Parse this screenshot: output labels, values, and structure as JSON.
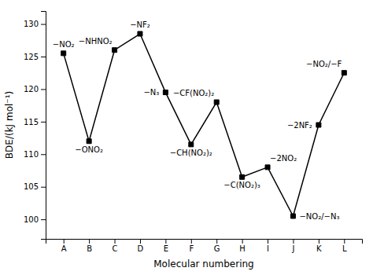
{
  "chart_data": {
    "type": "line",
    "categories": [
      "A",
      "B",
      "C",
      "D",
      "E",
      "F",
      "G",
      "H",
      "I",
      "J",
      "K",
      "L"
    ],
    "values": [
      125.5,
      112.0,
      126.0,
      128.5,
      119.5,
      111.5,
      118.0,
      106.5,
      108.0,
      100.5,
      114.5,
      122.5
    ],
    "color": "black",
    "marker": "square",
    "line_style": "solid",
    "grid": false,
    "xlabel": "Molecular numbering",
    "ylabel": "BDE/(kJ mol⁻¹)",
    "ylim": [
      97,
      132
    ],
    "yticks": [
      100,
      105,
      110,
      115,
      120,
      125,
      130
    ],
    "annotations": [
      {
        "text": "−NO₂",
        "x": "A",
        "y": 125.5
      },
      {
        "text": "−NHNO₂",
        "x": "C",
        "y": 126.0
      },
      {
        "text": "−ONO₂",
        "x": "B",
        "y": 112.0
      },
      {
        "text": "−NF₂",
        "x": "D",
        "y": 128.5
      },
      {
        "text": "−N₃",
        "x": "E",
        "y": 119.5
      },
      {
        "text": "−CH(NO₂)₂",
        "x": "F",
        "y": 111.5
      },
      {
        "text": "−CF(NO₂)₂",
        "x": "G",
        "y": 118.0
      },
      {
        "text": "−C(NO₂)₃",
        "x": "H",
        "y": 106.5
      },
      {
        "text": "−2NO₂",
        "x": "I",
        "y": 108.0
      },
      {
        "text": "−NO₂/−N₃",
        "x": "J",
        "y": 100.5
      },
      {
        "text": "−2NF₂",
        "x": "K",
        "y": 114.5
      },
      {
        "text": "−NO₂/−F",
        "x": "L",
        "y": 122.5
      }
    ]
  }
}
